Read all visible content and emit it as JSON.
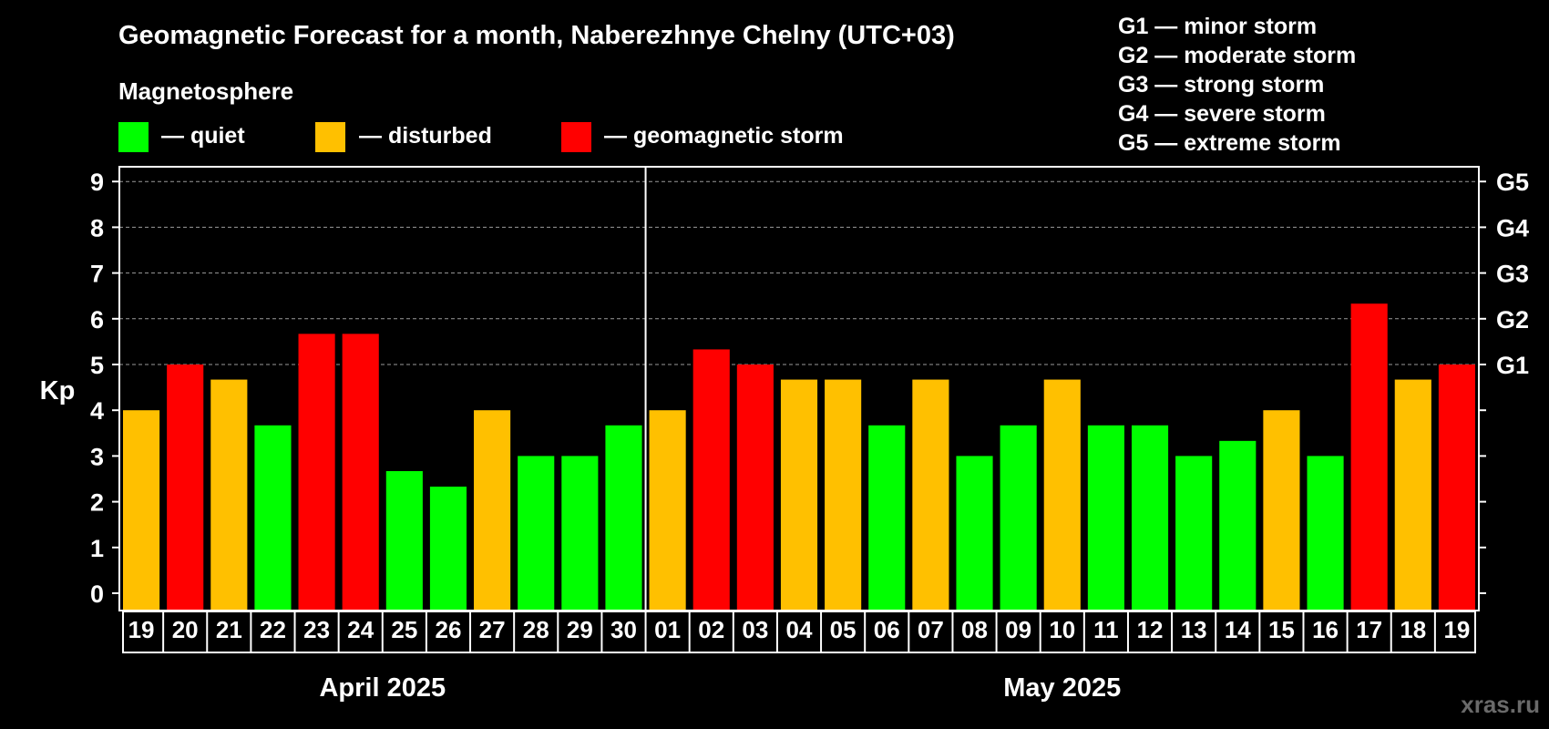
{
  "title": "Geomagnetic Forecast for a month, Naberezhnye Chelny (UTC+03)",
  "legend": {
    "heading": "Magnetosphere",
    "items": [
      {
        "key": "quiet",
        "label": "— quiet",
        "color": "#00ff00"
      },
      {
        "key": "disturbed",
        "label": "— disturbed",
        "color": "#ffc000"
      },
      {
        "key": "storm",
        "label": "— geomagnetic storm",
        "color": "#ff0000"
      }
    ]
  },
  "g_levels": [
    "G1 — minor storm",
    "G2 — moderate storm",
    "G3 — strong storm",
    "G4 — severe storm",
    "G5 — extreme storm"
  ],
  "watermark": "xras.ru",
  "colors": {
    "background": "#000000",
    "quiet": "#00ff00",
    "disturbed": "#ffc000",
    "storm": "#ff0000",
    "grid": "#9a9a9a",
    "axis": "#ffffff"
  },
  "chart_data": {
    "type": "bar",
    "ylabel": "Kp",
    "ylim": [
      0,
      9
    ],
    "yticks": [
      0,
      1,
      2,
      3,
      4,
      5,
      6,
      7,
      8,
      9
    ],
    "right_axis_labels": [
      {
        "kp": 5,
        "label": "G1"
      },
      {
        "kp": 6,
        "label": "G2"
      },
      {
        "kp": 7,
        "label": "G3"
      },
      {
        "kp": 8,
        "label": "G4"
      },
      {
        "kp": 9,
        "label": "G5"
      }
    ],
    "grid": "dashed horizontal at Kp 5-9",
    "months": [
      {
        "label": "April 2025",
        "days": [
          "19",
          "20",
          "21",
          "22",
          "23",
          "24",
          "25",
          "26",
          "27",
          "28",
          "29",
          "30"
        ]
      },
      {
        "label": "May 2025",
        "days": [
          "01",
          "02",
          "03",
          "04",
          "05",
          "06",
          "07",
          "08",
          "09",
          "10",
          "11",
          "12",
          "13",
          "14",
          "15",
          "16",
          "17",
          "18",
          "19"
        ]
      }
    ],
    "categories": [
      "19",
      "20",
      "21",
      "22",
      "23",
      "24",
      "25",
      "26",
      "27",
      "28",
      "29",
      "30",
      "01",
      "02",
      "03",
      "04",
      "05",
      "06",
      "07",
      "08",
      "09",
      "10",
      "11",
      "12",
      "13",
      "14",
      "15",
      "16",
      "17",
      "18",
      "19"
    ],
    "values": [
      4.0,
      5.0,
      4.67,
      3.67,
      5.67,
      5.67,
      2.67,
      2.33,
      4.0,
      3.0,
      3.0,
      3.67,
      4.0,
      5.33,
      5.0,
      4.67,
      4.67,
      3.67,
      4.67,
      3.0,
      3.67,
      4.67,
      3.67,
      3.67,
      3.0,
      3.33,
      4.0,
      3.0,
      6.33,
      4.67,
      5.0
    ],
    "levels": [
      "disturbed",
      "storm",
      "disturbed",
      "quiet",
      "storm",
      "storm",
      "quiet",
      "quiet",
      "disturbed",
      "quiet",
      "quiet",
      "quiet",
      "disturbed",
      "storm",
      "storm",
      "disturbed",
      "disturbed",
      "quiet",
      "disturbed",
      "quiet",
      "quiet",
      "disturbed",
      "quiet",
      "quiet",
      "quiet",
      "quiet",
      "disturbed",
      "quiet",
      "storm",
      "disturbed",
      "storm"
    ]
  }
}
